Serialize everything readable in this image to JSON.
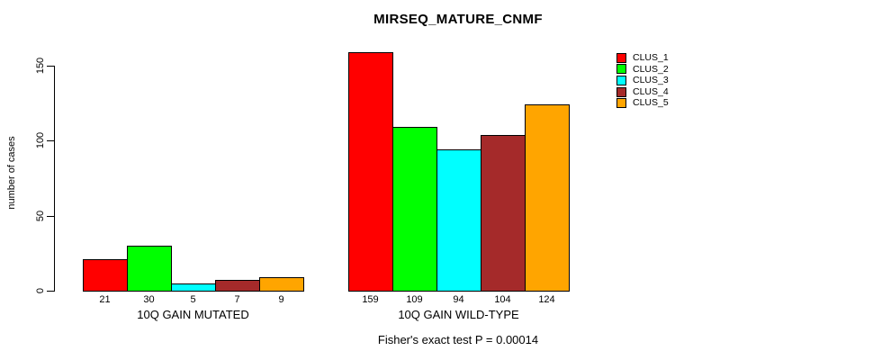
{
  "page": {
    "background": "#FFFFFF",
    "text_color": "#000000"
  },
  "chart_data": {
    "type": "bar",
    "title": "MIRSEQ_MATURE_CNMF",
    "ylabel": "number of cases",
    "xlabel": "",
    "yticks": [
      0,
      50,
      100,
      150
    ],
    "ylim": [
      0,
      160
    ],
    "grid": false,
    "legend_position": "top-right",
    "bar_border_color": "#000000",
    "series": [
      {
        "name": "CLUS_1",
        "color": "#FF0000"
      },
      {
        "name": "CLUS_2",
        "color": "#00FF00"
      },
      {
        "name": "CLUS_3",
        "color": "#00FFFF"
      },
      {
        "name": "CLUS_4",
        "color": "#A52A2A"
      },
      {
        "name": "CLUS_5",
        "color": "#FFA500"
      }
    ],
    "groups": [
      {
        "label": "10Q GAIN MUTATED",
        "values": [
          21,
          30,
          5,
          7,
          9
        ]
      },
      {
        "label": "10Q GAIN WILD-TYPE",
        "values": [
          159,
          109,
          94,
          104,
          124
        ]
      }
    ],
    "annotation": "Fisher's exact test P = 0.00014"
  }
}
